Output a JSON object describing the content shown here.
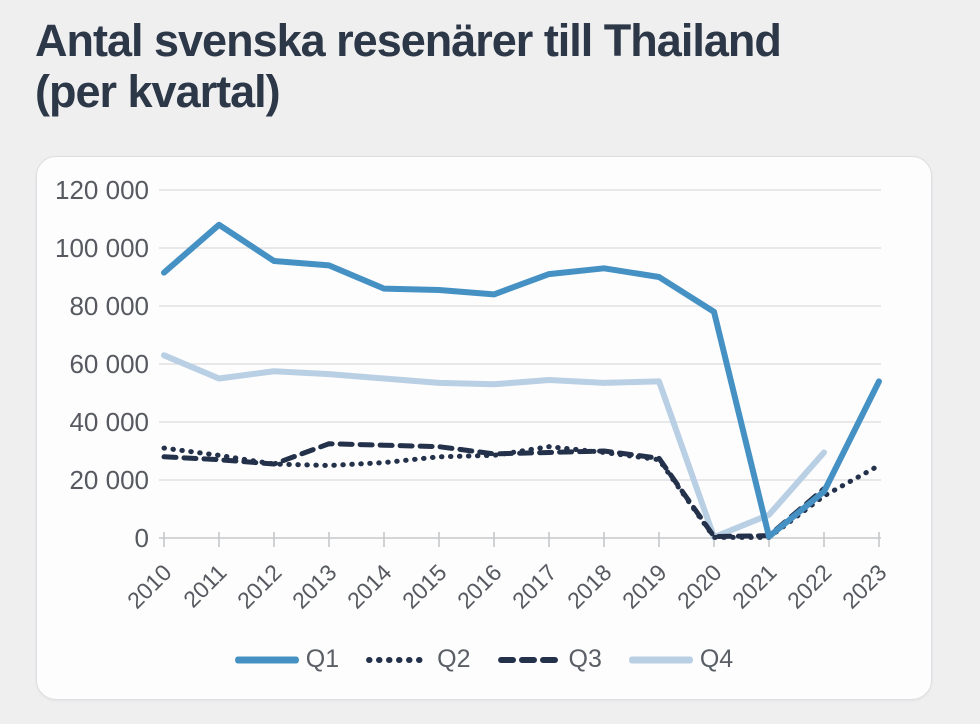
{
  "title": {
    "line1": "Antal svenska resenärer till Thailand",
    "line2": "(per kvartal)"
  },
  "colors": {
    "page_bg": "#f0eff0",
    "card_bg": "#fdfdfe",
    "card_border": "#dedee1",
    "title_text": "#2c3747",
    "axis_label": "#56595f",
    "gridline": "#dcdcdd",
    "axis_line": "#c6c8ca",
    "q1_line": "#4591c4",
    "q2_line": "#24314a",
    "q3_line": "#24314a",
    "q4_line": "#b9cfe4"
  },
  "chart_data": {
    "type": "line",
    "title": "Antal svenska resenärer till Thailand (per kvartal)",
    "categories": [
      "2010",
      "2011",
      "2012",
      "2013",
      "2014",
      "2015",
      "2016",
      "2017",
      "2018",
      "2019",
      "2020",
      "2021",
      "2022",
      "2023"
    ],
    "series": [
      {
        "name": "Q1",
        "line_style": "solid",
        "color": "#4591c4",
        "values": [
          91500,
          108000,
          95500,
          94000,
          86000,
          85500,
          84000,
          91000,
          93000,
          90000,
          78000,
          500,
          16000,
          54000
        ]
      },
      {
        "name": "Q2",
        "line_style": "dotted",
        "color": "#24314a",
        "values": [
          31000,
          28500,
          25500,
          25000,
          26000,
          28000,
          28500,
          31500,
          29500,
          27000,
          200,
          200,
          14500,
          25000
        ]
      },
      {
        "name": "Q3",
        "line_style": "dashed",
        "color": "#24314a",
        "values": [
          28000,
          27000,
          25500,
          32500,
          32000,
          31500,
          29000,
          29500,
          30000,
          27500,
          500,
          800,
          17000,
          null
        ]
      },
      {
        "name": "Q4",
        "line_style": "solid",
        "color": "#b9cfe4",
        "values": [
          63000,
          55000,
          57500,
          56500,
          55000,
          53500,
          53000,
          54500,
          53500,
          54000,
          300,
          8000,
          29500,
          null
        ]
      }
    ],
    "ylim": [
      0,
      120000
    ],
    "ytick_step": 20000,
    "ytick_labels": [
      "0",
      "20 000",
      "40 000",
      "60 000",
      "80 000",
      "100 000",
      "120 000"
    ],
    "grid": "horizontal",
    "legend_position": "bottom",
    "x_label_rotation": -45
  }
}
